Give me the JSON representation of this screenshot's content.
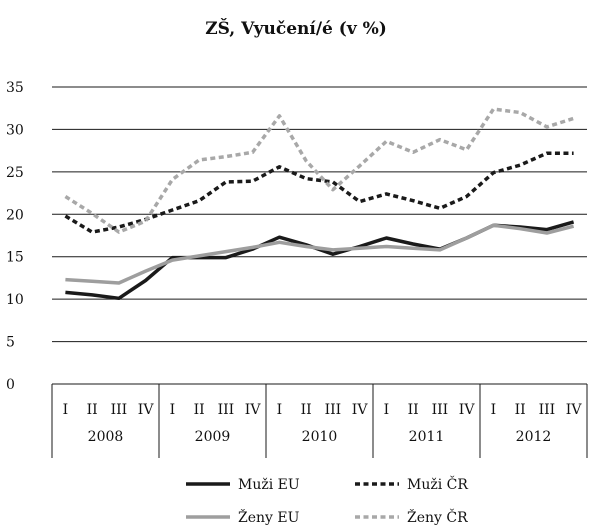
{
  "chart_data": {
    "type": "line",
    "title": "ZŠ, Vyučení/é (v %)",
    "xlabel": "",
    "ylabel": "",
    "ylim": [
      0,
      35
    ],
    "yticks": [
      0,
      5,
      10,
      15,
      20,
      25,
      30,
      35
    ],
    "quarters": [
      "I",
      "II",
      "III",
      "IV"
    ],
    "years": [
      "2008",
      "2009",
      "2010",
      "2011",
      "2012"
    ],
    "grid": true,
    "legend_position": "bottom",
    "series": [
      {
        "name": "Muži EU",
        "color": "#1a1a1a",
        "style": "solid",
        "values": [
          10.8,
          10.5,
          10.1,
          12.2,
          14.9,
          14.9,
          14.9,
          15.9,
          17.3,
          16.4,
          15.3,
          16.2,
          17.2,
          16.5,
          15.9,
          17.2,
          18.7,
          18.5,
          18.2,
          19.1
        ]
      },
      {
        "name": "Muži ČR",
        "color": "#1a1a1a",
        "style": "dotted",
        "values": [
          19.8,
          17.9,
          18.5,
          19.4,
          20.5,
          21.6,
          23.8,
          23.9,
          25.6,
          24.2,
          23.8,
          21.5,
          22.4,
          21.6,
          20.7,
          22.1,
          24.9,
          25.8,
          27.2,
          27.2
        ]
      },
      {
        "name": "Ženy EU",
        "color": "#9e9e9e",
        "style": "solid",
        "values": [
          12.3,
          12.1,
          11.9,
          13.3,
          14.6,
          15.1,
          15.6,
          16.1,
          16.7,
          16.2,
          15.8,
          16.0,
          16.2,
          16.0,
          15.8,
          17.2,
          18.7,
          18.3,
          17.8,
          18.6
        ]
      },
      {
        "name": "Ženy ČR",
        "color": "#a8a8a8",
        "style": "dotted",
        "values": [
          22.1,
          20.1,
          17.9,
          19.2,
          24.1,
          26.4,
          26.8,
          27.3,
          31.6,
          26.3,
          22.9,
          25.7,
          28.6,
          27.3,
          28.8,
          27.6,
          32.4,
          32.0,
          30.3,
          31.3
        ]
      }
    ]
  }
}
